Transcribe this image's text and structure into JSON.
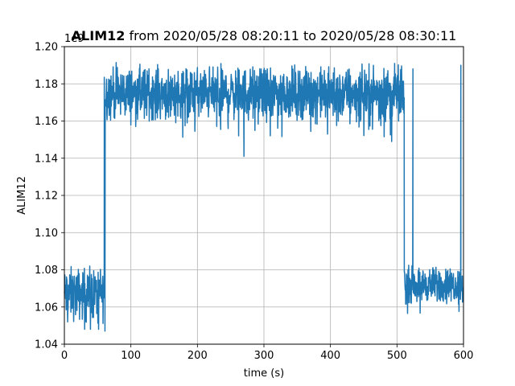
{
  "chart_data": {
    "type": "line",
    "title_bold": "ALIM12",
    "title_rest": " from 2020/05/28 08:20:11 to 2020/05/28 08:30:11",
    "xlabel": "time (s)",
    "ylabel": "ALIM12",
    "offset_text": "1e9",
    "xlim": [
      0,
      600
    ],
    "ylim": [
      1.04,
      1.2
    ],
    "y_scale_multiplier": 1000000000,
    "x_ticks": [
      0,
      100,
      200,
      300,
      400,
      500,
      600
    ],
    "x_tick_labels": [
      "0",
      "100",
      "200",
      "300",
      "400",
      "500",
      "600"
    ],
    "y_ticks": [
      1.04,
      1.06,
      1.08,
      1.1,
      1.12,
      1.14,
      1.16,
      1.18,
      1.2
    ],
    "y_tick_labels": [
      "1.04",
      "1.06",
      "1.08",
      "1.10",
      "1.12",
      "1.14",
      "1.16",
      "1.18",
      "1.20"
    ],
    "grid": true,
    "series_color": "#1f77b4",
    "segments": [
      {
        "x_start": 0,
        "x_end": 60,
        "center": 1.067,
        "amplitude": 0.012,
        "min": 1.048,
        "max": 1.082
      },
      {
        "x_start": 60,
        "x_end": 511,
        "center": 1.175,
        "amplitude": 0.012,
        "min": 1.141,
        "max": 1.194
      },
      {
        "x_start": 511,
        "x_end": 600,
        "center": 1.072,
        "amplitude": 0.008,
        "min": 1.053,
        "max": 1.089
      }
    ],
    "spikes": [
      {
        "x": 524,
        "y": 1.188
      },
      {
        "x": 596,
        "y": 1.19
      }
    ],
    "dips": [
      {
        "x": 61,
        "y": 1.047
      },
      {
        "x": 270,
        "y": 1.141
      },
      {
        "x": 492,
        "y": 1.149
      }
    ]
  }
}
